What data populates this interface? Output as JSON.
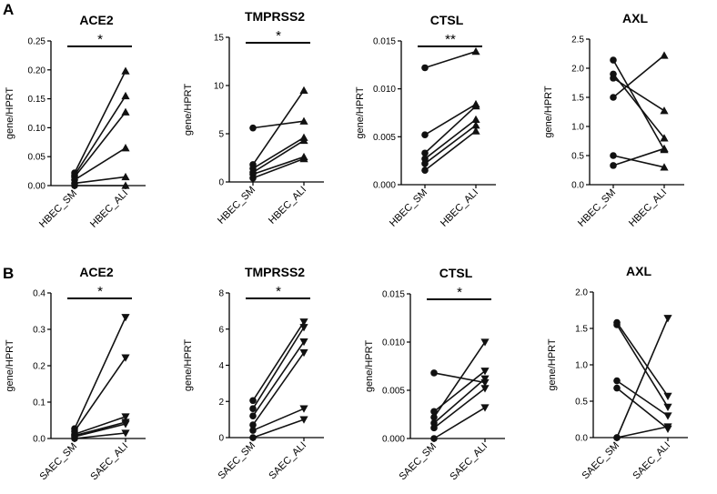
{
  "figure": {
    "panel_labels": [
      "A",
      "B"
    ]
  },
  "chart_data": [
    {
      "type": "line",
      "panel": "A",
      "title": "ACE2",
      "ylabel": "gene/HPRT",
      "categories": [
        "HBEC_SM",
        "HBEC_ALI"
      ],
      "ylim": [
        0,
        0.25
      ],
      "yticks": [
        "0.00",
        "0.05",
        "0.10",
        "0.15",
        "0.20",
        "0.25"
      ],
      "start_marker": "circle",
      "end_marker": "triangle-up",
      "series": [
        {
          "values": [
            0.022,
            0.198
          ]
        },
        {
          "values": [
            0.018,
            0.155
          ]
        },
        {
          "values": [
            0.015,
            0.127
          ]
        },
        {
          "values": [
            0.01,
            0.065
          ]
        },
        {
          "values": [
            0.004,
            0.015
          ]
        },
        {
          "values": [
            0.0,
            0.0
          ]
        }
      ],
      "significance": "*"
    },
    {
      "type": "line",
      "panel": "A",
      "title": "TMPRSS2",
      "ylabel": "gene/HPRT",
      "categories": [
        "HBEC_SM",
        "HBEC_ALI"
      ],
      "ylim": [
        0,
        15
      ],
      "yticks": [
        "0",
        "5",
        "10",
        "15"
      ],
      "start_marker": "circle",
      "end_marker": "triangle-up",
      "series": [
        {
          "values": [
            5.6,
            6.3
          ]
        },
        {
          "values": [
            1.8,
            9.5
          ]
        },
        {
          "values": [
            1.4,
            4.6
          ]
        },
        {
          "values": [
            1.0,
            4.3
          ]
        },
        {
          "values": [
            0.8,
            2.6
          ]
        },
        {
          "values": [
            0.4,
            2.4
          ]
        }
      ],
      "significance": "*"
    },
    {
      "type": "line",
      "panel": "A",
      "title": "CTSL",
      "ylabel": "gene/HPRT",
      "categories": [
        "HBEC_SM",
        "HBEC_ALI"
      ],
      "ylim": [
        0,
        0.015
      ],
      "yticks": [
        "0.000",
        "0.005",
        "0.010",
        "0.015"
      ],
      "start_marker": "circle",
      "end_marker": "triangle-up",
      "series": [
        {
          "values": [
            0.0122,
            0.0139
          ]
        },
        {
          "values": [
            0.0052,
            0.0084
          ]
        },
        {
          "values": [
            0.0033,
            0.0082
          ]
        },
        {
          "values": [
            0.0027,
            0.0068
          ]
        },
        {
          "values": [
            0.0022,
            0.0062
          ]
        },
        {
          "values": [
            0.0015,
            0.0056
          ]
        }
      ],
      "significance": "**"
    },
    {
      "type": "line",
      "panel": "A",
      "title": "AXL",
      "ylabel": "gene/HPRT",
      "categories": [
        "HBEC_SM",
        "HBEC_ALI"
      ],
      "ylim": [
        0,
        2.5
      ],
      "yticks": [
        "0.0",
        "0.5",
        "1.0",
        "1.5",
        "2.0",
        "2.5"
      ],
      "start_marker": "circle",
      "end_marker": "triangle-up",
      "series": [
        {
          "values": [
            2.14,
            0.6
          ]
        },
        {
          "values": [
            1.9,
            0.8
          ]
        },
        {
          "values": [
            1.83,
            1.27
          ]
        },
        {
          "values": [
            1.5,
            2.22
          ]
        },
        {
          "values": [
            0.5,
            0.3
          ]
        },
        {
          "values": [
            0.33,
            0.62
          ]
        }
      ],
      "significance": ""
    },
    {
      "type": "line",
      "panel": "B",
      "title": "ACE2",
      "ylabel": "gene/HPRT",
      "categories": [
        "SAEC_SM",
        "SAEC_ALI"
      ],
      "ylim": [
        0,
        0.4
      ],
      "yticks": [
        "0.0",
        "0.1",
        "0.2",
        "0.3",
        "0.4"
      ],
      "start_marker": "circle",
      "end_marker": "triangle-down",
      "series": [
        {
          "values": [
            0.027,
            0.333
          ]
        },
        {
          "values": [
            0.02,
            0.222
          ]
        },
        {
          "values": [
            0.012,
            0.06
          ]
        },
        {
          "values": [
            0.008,
            0.045
          ]
        },
        {
          "values": [
            0.005,
            0.04
          ]
        },
        {
          "values": [
            0.0,
            0.015
          ]
        }
      ],
      "significance": "*"
    },
    {
      "type": "line",
      "panel": "B",
      "title": "TMPRSS2",
      "ylabel": "gene/HPRT",
      "categories": [
        "SAEC_SM",
        "SAEC_ALI"
      ],
      "ylim": [
        0,
        8
      ],
      "yticks": [
        "0",
        "2",
        "4",
        "6",
        "8"
      ],
      "start_marker": "circle",
      "end_marker": "triangle-down",
      "series": [
        {
          "values": [
            2.05,
            6.4
          ]
        },
        {
          "values": [
            1.6,
            6.1
          ]
        },
        {
          "values": [
            1.2,
            5.3
          ]
        },
        {
          "values": [
            0.7,
            4.7
          ]
        },
        {
          "values": [
            0.4,
            1.6
          ]
        },
        {
          "values": [
            0.0,
            1.0
          ]
        }
      ],
      "significance": "*"
    },
    {
      "type": "line",
      "panel": "B",
      "title": "CTSL",
      "ylabel": "gene/HPRT",
      "categories": [
        "SAEC_SM",
        "SAEC_ALI"
      ],
      "ylim": [
        0,
        0.015
      ],
      "yticks": [
        "0.000",
        "0.005",
        "0.010",
        "0.015"
      ],
      "start_marker": "circle",
      "end_marker": "triangle-down",
      "series": [
        {
          "values": [
            0.0068,
            0.0058
          ]
        },
        {
          "values": [
            0.0028,
            0.007
          ]
        },
        {
          "values": [
            0.0022,
            0.01
          ]
        },
        {
          "values": [
            0.0016,
            0.0062
          ]
        },
        {
          "values": [
            0.0011,
            0.0052
          ]
        },
        {
          "values": [
            0.0,
            0.0032
          ]
        }
      ],
      "significance": "*"
    },
    {
      "type": "line",
      "panel": "B",
      "title": "AXL",
      "ylabel": "gene/HPRT",
      "categories": [
        "SAEC_SM",
        "SAEC_ALI"
      ],
      "ylim": [
        0,
        2.0
      ],
      "yticks": [
        "0.0",
        "0.5",
        "1.0",
        "1.5",
        "2.0"
      ],
      "start_marker": "circle",
      "end_marker": "triangle-down",
      "series": [
        {
          "values": [
            1.58,
            0.57
          ]
        },
        {
          "values": [
            1.55,
            0.42
          ]
        },
        {
          "values": [
            0.78,
            0.3
          ]
        },
        {
          "values": [
            0.68,
            0.12
          ]
        },
        {
          "values": [
            0.0,
            1.64
          ]
        },
        {
          "values": [
            0.0,
            0.15
          ]
        }
      ],
      "significance": ""
    }
  ]
}
